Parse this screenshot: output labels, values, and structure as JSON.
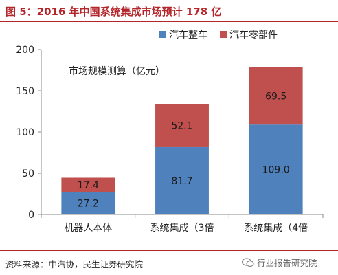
{
  "figure_title": "图 5：2016 年中国系统集成市场预计 178 亿",
  "source": "资料来源：中汽协，民生证券研究院",
  "watermark": "行业报告研究院",
  "colors": {
    "accent": "#b4252a",
    "series_blue": "#4f81bd",
    "series_red": "#c0504d",
    "axis": "#888888",
    "text": "#222222"
  },
  "chart_data": {
    "type": "bar",
    "stacked": true,
    "annotation": "市场规模测算（亿元）",
    "categories": [
      "机器人本体",
      "系统集成（3倍",
      "系统集成（4倍"
    ],
    "series": [
      {
        "name": "汽车整车",
        "values": [
          27.2,
          81.7,
          109.0
        ],
        "labels": [
          "27.2",
          "81.7",
          "109.0"
        ],
        "color": "#4f81bd"
      },
      {
        "name": "汽车零部件",
        "values": [
          17.4,
          52.1,
          69.5
        ],
        "labels": [
          "17.4",
          "52.1",
          "69.5"
        ],
        "color": "#c0504d"
      }
    ],
    "ylim": [
      0,
      200
    ],
    "yticks": [
      0,
      50,
      100,
      150,
      200
    ],
    "ytick_labels": [
      "0",
      "50",
      "100",
      "150",
      "200"
    ],
    "legend_position": "top-right",
    "grid": false
  }
}
